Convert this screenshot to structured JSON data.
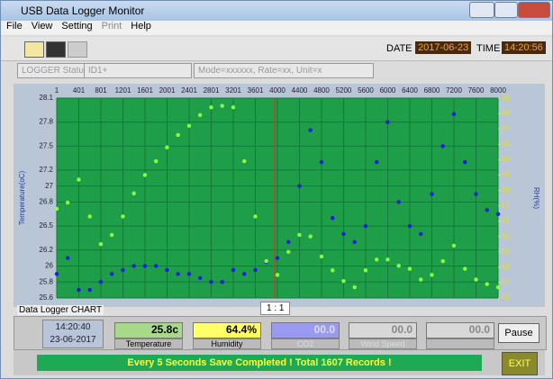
{
  "window": {
    "title": "USB Data Logger Monitor"
  },
  "menu": [
    "File",
    "View",
    "Setting",
    "Print",
    "Help"
  ],
  "toolbar": {
    "date_label": "DATE",
    "date": "2017-06-23",
    "time_label": "TIME",
    "time": "14:20:56"
  },
  "status_row": {
    "button": "LOGGER Status",
    "id": "ID1+",
    "info": "Mode=xxxxxx, Rate=xx, Unit=x"
  },
  "chart_data": {
    "type": "scatter",
    "ylabel": "Temperature(oC)",
    "y2label": "RH(%)",
    "x": [
      1,
      200,
      400,
      600,
      800,
      1000,
      1200,
      1400,
      1600,
      1800,
      2000,
      2200,
      2400,
      2600,
      2800,
      3000,
      3200,
      3400,
      3600,
      3800,
      4000,
      4200,
      4400,
      4600,
      4800,
      5000,
      5200,
      5400,
      5600,
      5800,
      6000,
      6200,
      6400,
      6600,
      6800,
      7000,
      7200,
      7400,
      7600,
      7800,
      8000
    ],
    "series": [
      {
        "color": "#1c1ce0",
        "values": [
          25.9,
          26.1,
          25.7,
          25.7,
          25.8,
          25.9,
          25.95,
          26.0,
          26.0,
          26.0,
          25.95,
          25.9,
          25.9,
          25.85,
          25.8,
          25.8,
          25.95,
          25.9,
          25.95,
          26.05,
          26.1,
          26.3,
          27.0,
          27.7,
          27.3,
          26.6,
          26.4,
          26.3,
          26.5,
          27.3,
          27.8,
          26.8,
          26.5,
          26.4,
          26.9,
          27.5,
          27.9,
          27.3,
          26.9,
          26.7,
          26.65
        ]
      },
      {
        "color": "#8cff3c",
        "axis": "y2",
        "values": [
          61.8,
          62.2,
          63.7,
          61.3,
          59.5,
          60.1,
          61.3,
          62.8,
          64.0,
          64.9,
          65.8,
          66.6,
          67.2,
          67.9,
          68.4,
          68.5,
          68.4,
          64.9,
          61.3,
          58.4,
          57.5,
          59.0,
          60.1,
          60.0,
          58.7,
          57.8,
          57.1,
          56.7,
          57.8,
          58.5,
          58.5,
          58.1,
          57.9,
          57.2,
          57.5,
          58.4,
          59.4,
          57.9,
          57.2,
          56.9,
          56.7
        ]
      }
    ],
    "xlim": [
      1,
      8000
    ],
    "xticks": [
      1,
      401,
      801,
      1201,
      1601,
      2001,
      2401,
      2801,
      3201,
      3601,
      4000,
      4400,
      4800,
      5200,
      5600,
      6000,
      6400,
      6800,
      7200,
      7600,
      8000
    ],
    "ylim": [
      25.6,
      28.1
    ],
    "yticks": [
      25.6,
      25.8,
      26.0,
      26.2,
      26.5,
      26.8,
      27.0,
      27.2,
      27.5,
      27.8,
      28.1
    ],
    "y2lim": [
      56,
      69
    ],
    "y2ticks": [
      56,
      57,
      58,
      59,
      60,
      61,
      62,
      63,
      64,
      65,
      66,
      67,
      68,
      69
    ],
    "grid": true
  },
  "chart_footer": {
    "label": "Data Logger CHART",
    "zoom": "1 : 1"
  },
  "panel": {
    "time": "14:20:40",
    "date": "23-06-2017",
    "readings": [
      {
        "value": "25.8c",
        "label": "Temperature"
      },
      {
        "value": "64.4%",
        "label": "Humidity"
      },
      {
        "value": "00.0",
        "label": "CO2"
      },
      {
        "value": "00.0",
        "label": "Wind Speed"
      },
      {
        "value": "00.0"
      }
    ],
    "pause": "Pause"
  },
  "status": "Every 5 Seconds Save Completed ! Total 1607 Records !",
  "exit": "EXIT"
}
